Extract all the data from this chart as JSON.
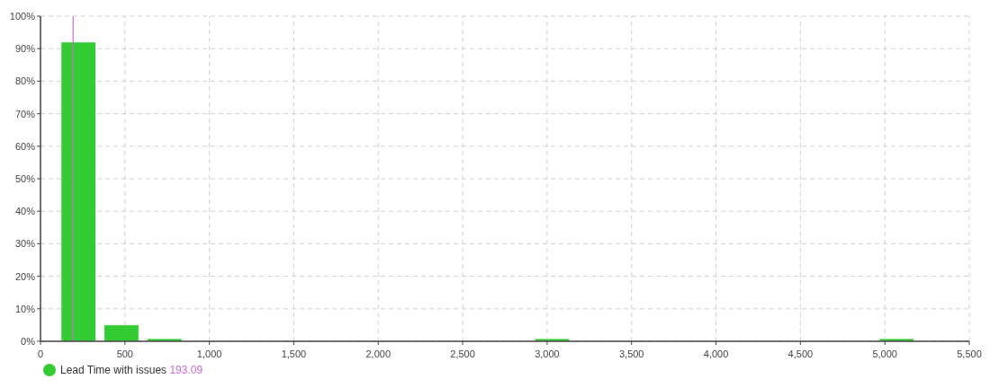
{
  "chart_data": {
    "type": "histogram",
    "series": [
      {
        "name": "Lead Time with issues",
        "color": "#33cc33",
        "values": [
          92,
          5,
          0.8,
          0,
          0,
          0,
          0,
          0,
          0,
          0,
          0,
          0.8,
          0,
          0,
          0,
          0,
          0,
          0,
          0,
          0.8
        ]
      }
    ],
    "bins": [
      97,
      352,
      607,
      862,
      1117,
      1372,
      1627,
      1882,
      2137,
      2392,
      2647,
      2902,
      3157,
      3412,
      3667,
      3922,
      4177,
      4432,
      4687,
      4942,
      5197
    ],
    "xlim": [
      0,
      5500
    ],
    "xticks": [
      0,
      500,
      {
        "value": 1000,
        "label": "1,000"
      },
      {
        "value": 1500,
        "label": "1,500"
      },
      {
        "value": 2000,
        "label": "2,000"
      },
      {
        "value": 2500,
        "label": "2,500"
      },
      {
        "value": 3000,
        "label": "3,000"
      },
      {
        "value": 3500,
        "label": "3,500"
      },
      {
        "value": 4000,
        "label": "4,000"
      },
      {
        "value": 4500,
        "label": "4,500"
      },
      {
        "value": 5000,
        "label": "5,000"
      },
      {
        "value": 5500,
        "label": "5,500"
      }
    ],
    "ylim": [
      0,
      100
    ],
    "yticks": [
      {
        "value": 0,
        "label": "0%"
      },
      {
        "value": 10,
        "label": "10%"
      },
      {
        "value": 20,
        "label": "20%"
      },
      {
        "value": 30,
        "label": "30%"
      },
      {
        "value": 40,
        "label": "40%"
      },
      {
        "value": 50,
        "label": "50%"
      },
      {
        "value": 60,
        "label": "60%"
      },
      {
        "value": 70,
        "label": "70%"
      },
      {
        "value": 80,
        "label": "80%"
      },
      {
        "value": 90,
        "label": "90%"
      },
      {
        "value": 100,
        "label": "100%"
      }
    ],
    "ref_lines": [
      {
        "axis": "x",
        "value": 193.09,
        "label": "193.09",
        "color": "#c86dd7"
      }
    ],
    "grid": true,
    "legend": "bottom"
  }
}
